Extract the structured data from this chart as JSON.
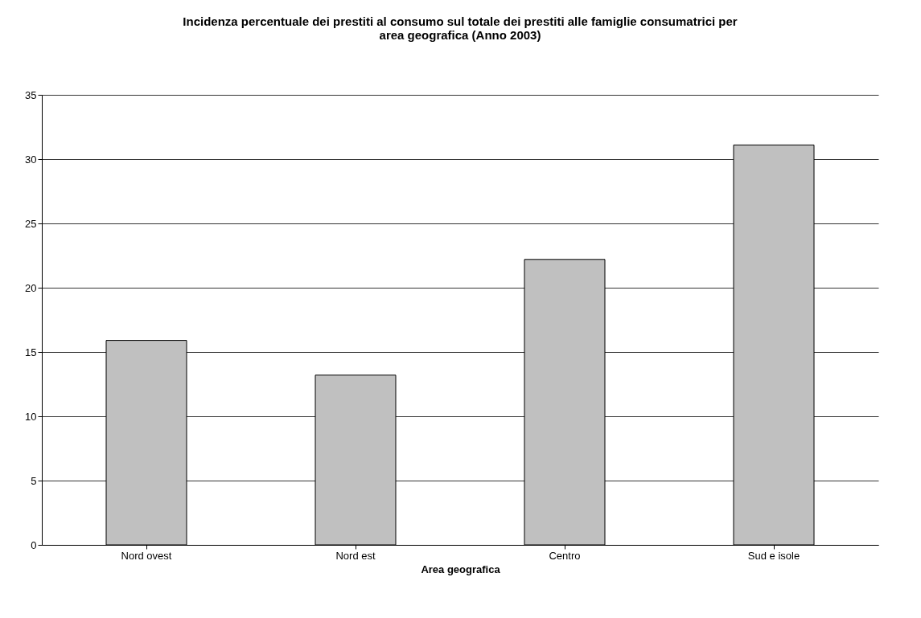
{
  "chart_data": {
    "type": "bar",
    "title": [
      "Incidenza percentuale dei prestiti al consumo sul totale dei prestiti alle famiglie consumatrici per",
      "area geografica (Anno 2003)"
    ],
    "xlabel": "Area geografica",
    "categories": [
      "Nord ovest",
      "Nord est",
      "Centro",
      "Sud e isole"
    ],
    "values": [
      15.9,
      13.2,
      22.2,
      31.1
    ],
    "color": "#c0c0c0",
    "ylim": [
      0,
      35
    ],
    "yticks": [
      0,
      5,
      10,
      15,
      20,
      25,
      30,
      35
    ],
    "grid": "y"
  }
}
